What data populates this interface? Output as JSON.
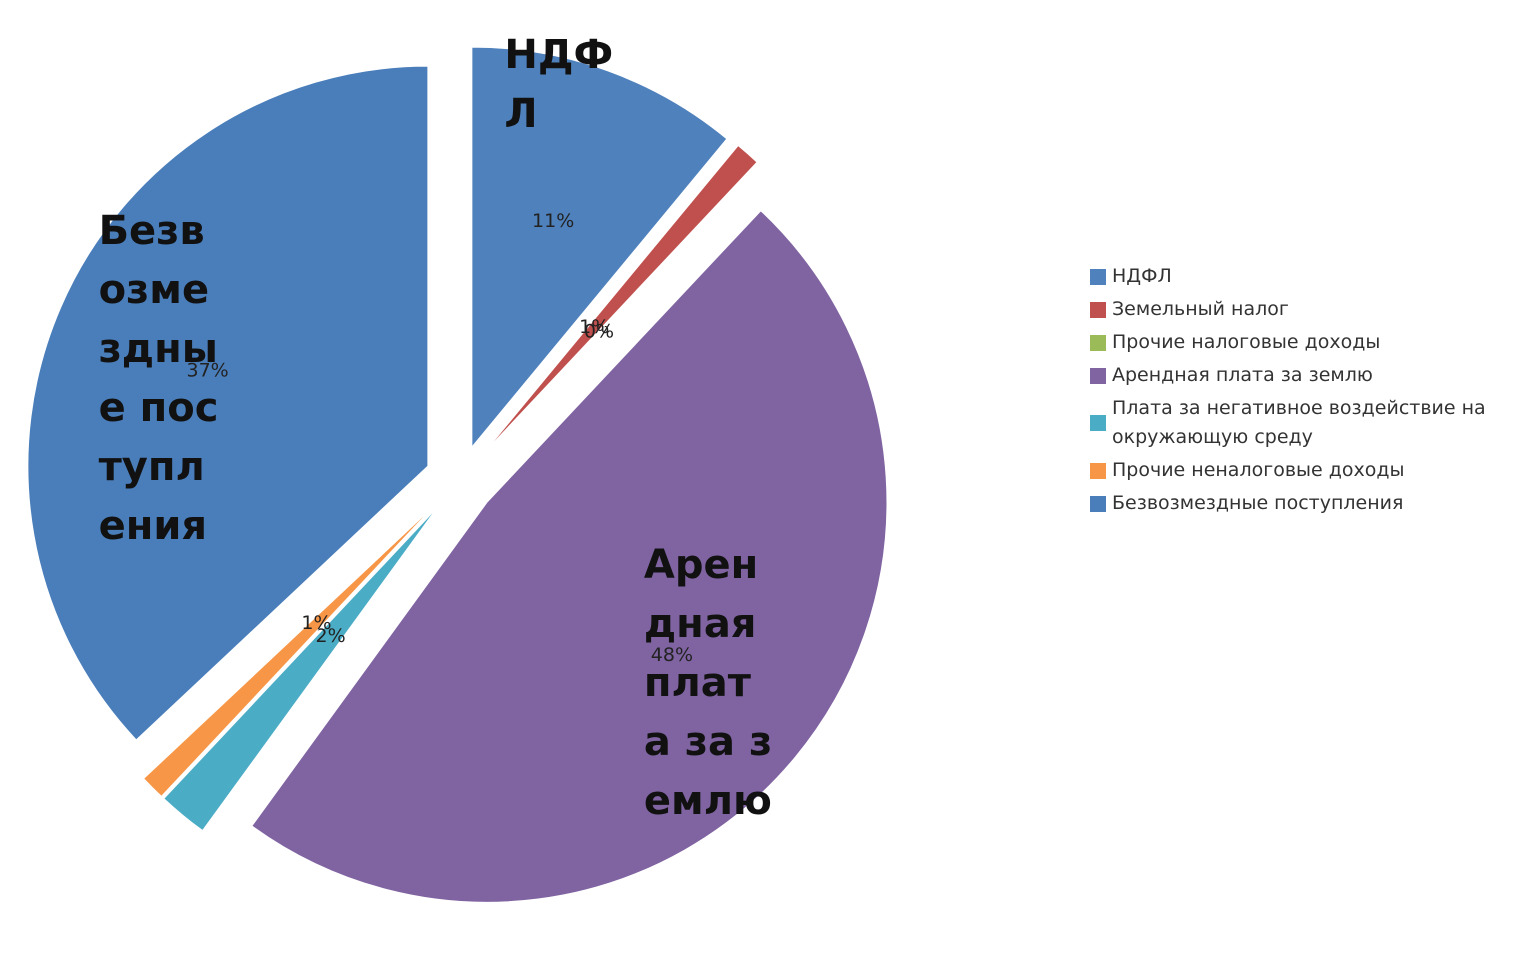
{
  "chart_data": {
    "type": "pie",
    "categories": [
      "НДФЛ",
      "Земельный налог",
      "Прочие налоговые доходы",
      "Арендная плата за землю",
      "Плата за негативное воздействие на окружающую среду",
      "Прочие неналоговые доходы",
      "Безвозмездные поступления"
    ],
    "values": [
      11,
      1,
      0,
      48,
      2,
      1,
      37
    ],
    "value_labels": [
      "11%",
      "1%",
      "0%",
      "48%",
      "2%",
      "1%",
      "37%"
    ],
    "colors": [
      "#4f81bd",
      "#c0504d",
      "#9bbb59",
      "#8064a2",
      "#4bacc6",
      "#f79646",
      "#4a7ebb"
    ],
    "legend": "right"
  }
}
